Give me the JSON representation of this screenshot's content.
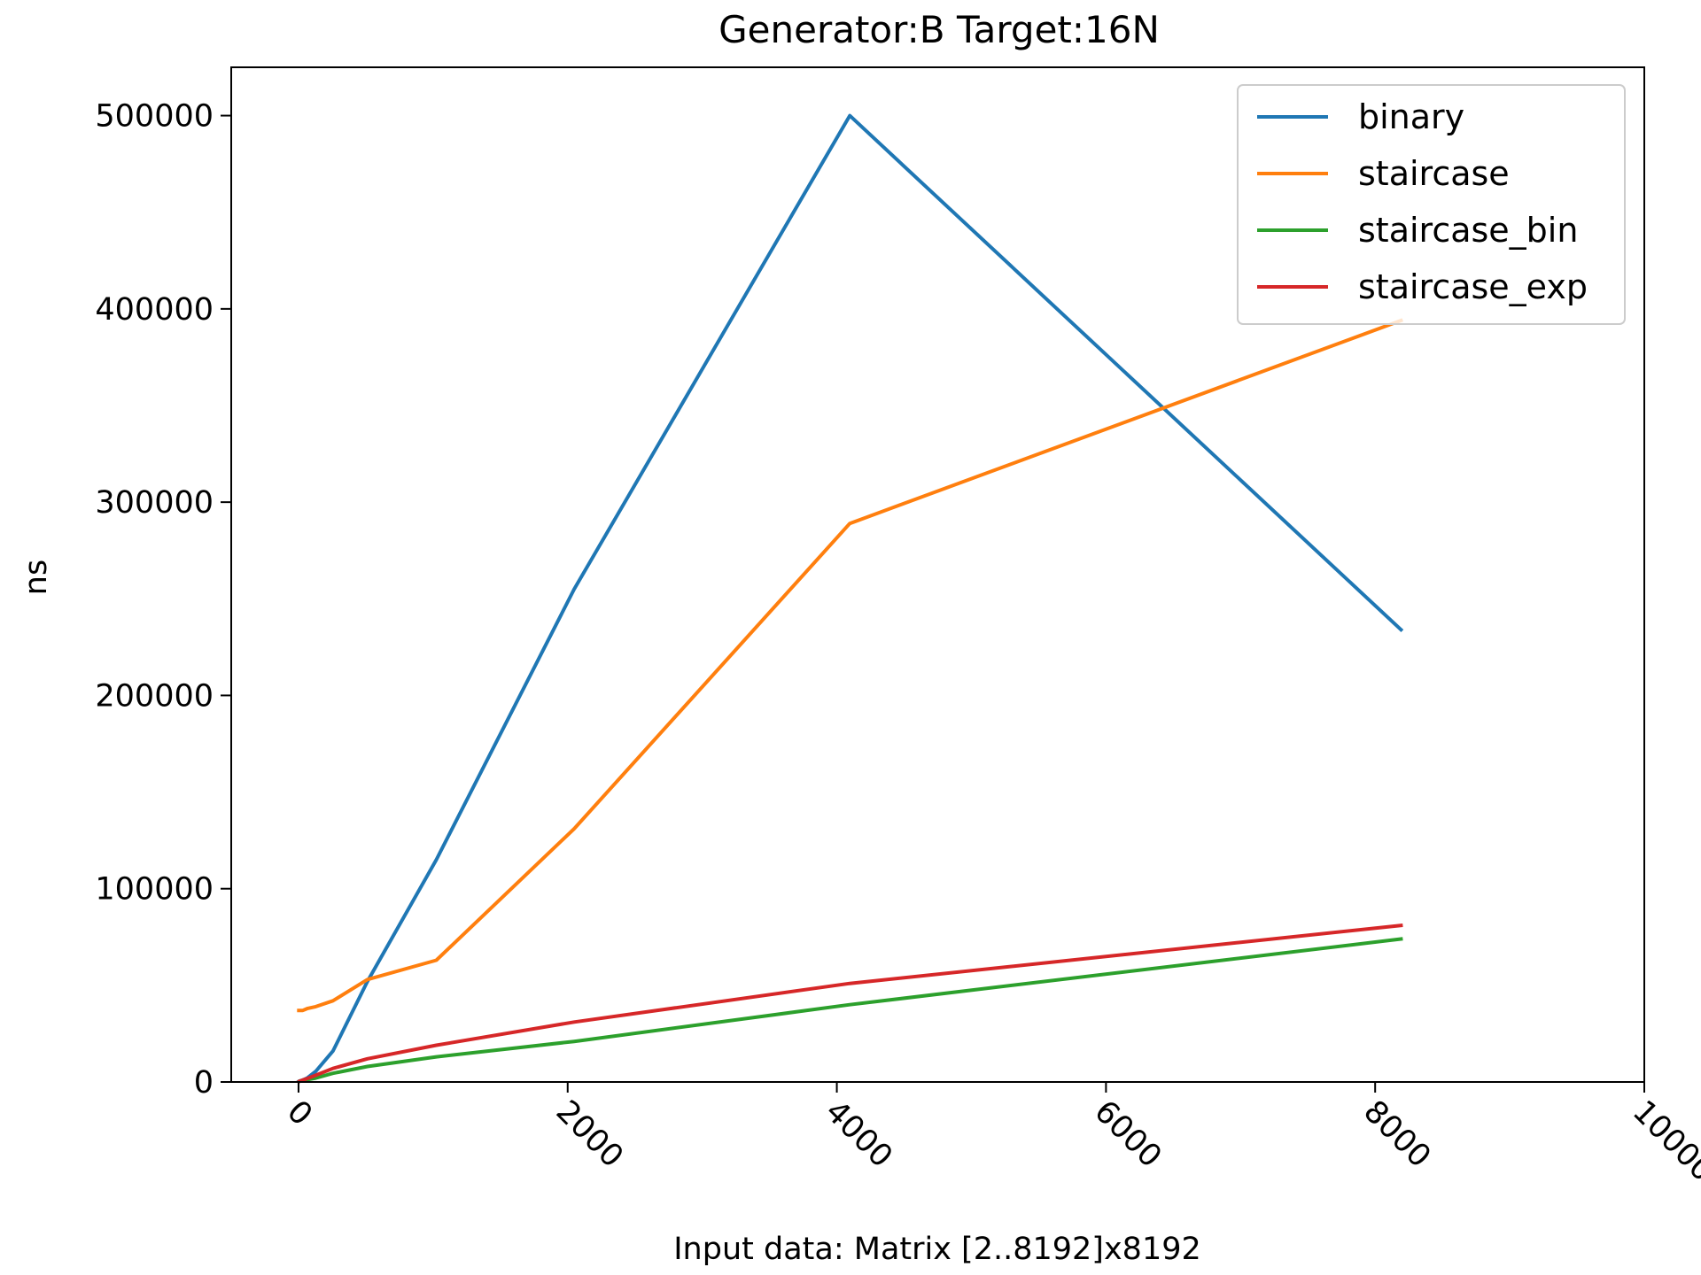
{
  "chart_data": {
    "type": "line",
    "title": "Generator:B Target:16N",
    "xlabel": "Input data: Matrix [2..8192]x8192",
    "ylabel": "ns",
    "xlim": [
      -500,
      10000
    ],
    "ylim": [
      0,
      525000
    ],
    "xticks": [
      0,
      2000,
      4000,
      6000,
      8000,
      10000
    ],
    "xtick_labels": [
      "0",
      "2000",
      "4000",
      "6000",
      "8000",
      "10000"
    ],
    "xtick_rotation": -45,
    "yticks": [
      0,
      100000,
      200000,
      300000,
      400000,
      500000
    ],
    "ytick_labels": [
      "0",
      "100000",
      "200000",
      "300000",
      "400000",
      "500000"
    ],
    "grid": false,
    "legend_position": "top-right",
    "x": [
      2,
      4,
      8,
      16,
      32,
      64,
      128,
      256,
      512,
      1024,
      2048,
      4096,
      8192
    ],
    "series": [
      {
        "name": "binary",
        "color": "#1f77b4",
        "values": [
          300,
          400,
          500,
          700,
          1000,
          2000,
          5500,
          16000,
          52000,
          115000,
          255000,
          500000,
          234000
        ]
      },
      {
        "name": "staircase",
        "color": "#ff7f0e",
        "values": [
          37000,
          37000,
          37000,
          37000,
          37000,
          38000,
          39000,
          42000,
          53000,
          63000,
          131000,
          289000,
          394000
        ]
      },
      {
        "name": "staircase_bin",
        "color": "#2ca02c",
        "values": [
          200,
          300,
          400,
          500,
          800,
          1200,
          2000,
          4500,
          8000,
          13000,
          21000,
          40000,
          74000
        ]
      },
      {
        "name": "staircase_exp",
        "color": "#d62728",
        "values": [
          200,
          300,
          400,
          600,
          1000,
          1800,
          3500,
          7000,
          12000,
          19000,
          31000,
          51000,
          81000
        ]
      }
    ]
  }
}
